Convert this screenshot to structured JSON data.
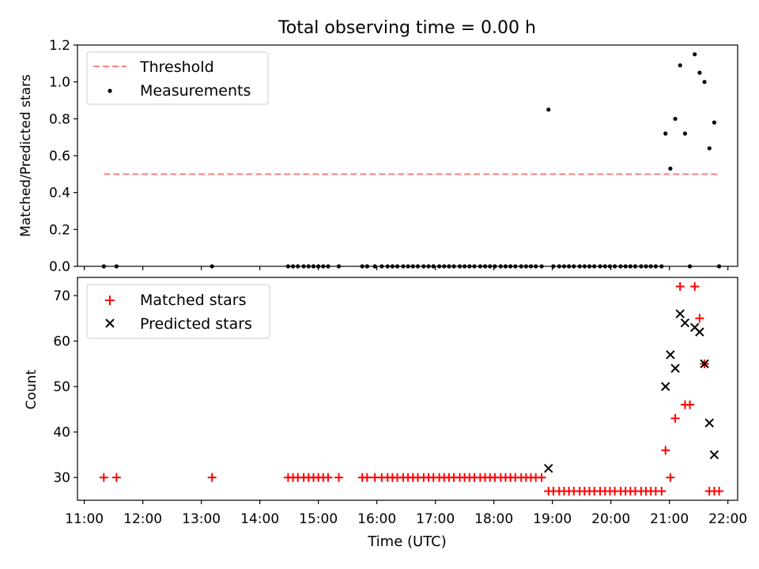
{
  "chart_data": [
    {
      "type": "scatter",
      "title": "Total observing time = 0.00 h",
      "xlabel": "",
      "ylabel": "Matched/Predicted stars",
      "ylim": [
        0,
        1.2
      ],
      "yticks": [
        "0.0",
        "0.2",
        "0.4",
        "0.6",
        "0.8",
        "1.0",
        "1.2"
      ],
      "legend": {
        "placement": "upper-left",
        "entries": [
          "Threshold",
          "Measurements"
        ]
      },
      "threshold": {
        "name": "Threshold",
        "y": 0.5,
        "x_range": [
          "11:20",
          "21:50"
        ],
        "color": "#ff7f7f"
      },
      "series": [
        {
          "name": "Measurements",
          "color": "#000000",
          "x": [
            "11:20",
            "11:33",
            "13:11",
            "14:29",
            "14:34",
            "14:39",
            "14:45",
            "14:50",
            "14:55",
            "15:00",
            "15:05",
            "15:10",
            "15:21",
            "15:45",
            "15:50",
            "15:58",
            "16:05",
            "16:11",
            "16:16",
            "16:21",
            "16:27",
            "16:32",
            "16:37",
            "16:42",
            "16:48",
            "16:53",
            "16:58",
            "17:04",
            "17:09",
            "17:14",
            "17:19",
            "17:25",
            "17:30",
            "17:35",
            "17:40",
            "17:46",
            "17:51",
            "17:56",
            "18:01",
            "18:07",
            "18:12",
            "18:17",
            "18:22",
            "18:28",
            "18:33",
            "18:38",
            "18:43",
            "18:49",
            "18:56",
            "19:01",
            "19:07",
            "19:12",
            "19:17",
            "19:22",
            "19:28",
            "19:33",
            "19:38",
            "19:43",
            "19:49",
            "19:54",
            "19:59",
            "20:04",
            "20:10",
            "20:15",
            "20:20",
            "20:25",
            "20:31",
            "20:36",
            "20:41",
            "20:46",
            "20:52",
            "20:56",
            "21:01",
            "21:06",
            "21:11",
            "21:16",
            "21:21",
            "21:26",
            "21:31",
            "21:36",
            "21:41",
            "21:46",
            "21:51"
          ],
          "y": [
            0,
            0,
            0,
            0,
            0,
            0,
            0,
            0,
            0,
            0,
            0,
            0,
            0,
            0,
            0,
            0,
            0,
            0,
            0,
            0,
            0,
            0,
            0,
            0,
            0,
            0,
            0,
            0,
            0,
            0,
            0,
            0,
            0,
            0,
            0,
            0,
            0,
            0,
            0,
            0,
            0,
            0,
            0,
            0,
            0,
            0,
            0,
            0,
            0.85,
            0,
            0,
            0,
            0,
            0,
            0,
            0,
            0,
            0,
            0,
            0,
            0,
            0,
            0,
            0,
            0,
            0,
            0,
            0,
            0,
            0,
            0,
            0.72,
            0.53,
            0.8,
            1.09,
            0.72,
            0,
            1.15,
            1.05,
            1.0,
            0.64,
            0.78,
            0
          ]
        }
      ]
    },
    {
      "type": "scatter",
      "title": "",
      "xlabel": "Time (UTC)",
      "ylabel": "Count",
      "ylim": [
        25,
        74
      ],
      "yticks": [
        "30",
        "40",
        "50",
        "60",
        "70"
      ],
      "xlim": [
        "10:53",
        "22:10"
      ],
      "xticks": [
        "11:00",
        "12:00",
        "13:00",
        "14:00",
        "15:00",
        "16:00",
        "17:00",
        "18:00",
        "19:00",
        "20:00",
        "21:00",
        "22:00"
      ],
      "legend": {
        "placement": "upper-left",
        "entries": [
          "Matched stars",
          "Predicted stars"
        ]
      },
      "series": [
        {
          "name": "Matched stars",
          "marker": "+",
          "color": "#ff0000",
          "x": [
            "11:20",
            "11:33",
            "13:11",
            "14:29",
            "14:34",
            "14:39",
            "14:45",
            "14:50",
            "14:55",
            "15:00",
            "15:05",
            "15:10",
            "15:21",
            "15:45",
            "15:50",
            "15:58",
            "16:05",
            "16:11",
            "16:16",
            "16:21",
            "16:27",
            "16:32",
            "16:37",
            "16:42",
            "16:48",
            "16:53",
            "16:58",
            "17:04",
            "17:09",
            "17:14",
            "17:19",
            "17:25",
            "17:30",
            "17:35",
            "17:40",
            "17:46",
            "17:51",
            "17:56",
            "18:01",
            "18:07",
            "18:12",
            "18:17",
            "18:22",
            "18:28",
            "18:33",
            "18:38",
            "18:43",
            "18:49",
            "18:56",
            "19:01",
            "19:07",
            "19:12",
            "19:17",
            "19:22",
            "19:28",
            "19:33",
            "19:38",
            "19:43",
            "19:49",
            "19:54",
            "19:59",
            "20:04",
            "20:10",
            "20:15",
            "20:20",
            "20:25",
            "20:31",
            "20:36",
            "20:41",
            "20:46",
            "20:52",
            "20:56",
            "21:01",
            "21:06",
            "21:11",
            "21:16",
            "21:21",
            "21:26",
            "21:31",
            "21:36",
            "21:41",
            "21:46",
            "21:51"
          ],
          "y": [
            30,
            30,
            30,
            30,
            30,
            30,
            30,
            30,
            30,
            30,
            30,
            30,
            30,
            30,
            30,
            30,
            30,
            30,
            30,
            30,
            30,
            30,
            30,
            30,
            30,
            30,
            30,
            30,
            30,
            30,
            30,
            30,
            30,
            30,
            30,
            30,
            30,
            30,
            30,
            30,
            30,
            30,
            30,
            30,
            30,
            30,
            30,
            30,
            27,
            27,
            27,
            27,
            27,
            27,
            27,
            27,
            27,
            27,
            27,
            27,
            27,
            27,
            27,
            27,
            27,
            27,
            27,
            27,
            27,
            27,
            27,
            36,
            30,
            43,
            72,
            46,
            46,
            72,
            65,
            55,
            27,
            27,
            27
          ]
        },
        {
          "name": "Predicted stars",
          "marker": "x",
          "color": "#000000",
          "x": [
            "18:56",
            "20:56",
            "21:01",
            "21:06",
            "21:11",
            "21:16",
            "21:26",
            "21:31",
            "21:36",
            "21:41",
            "21:46"
          ],
          "y": [
            32,
            50,
            57,
            54,
            66,
            64,
            63,
            62,
            55,
            42,
            35
          ]
        }
      ]
    }
  ]
}
